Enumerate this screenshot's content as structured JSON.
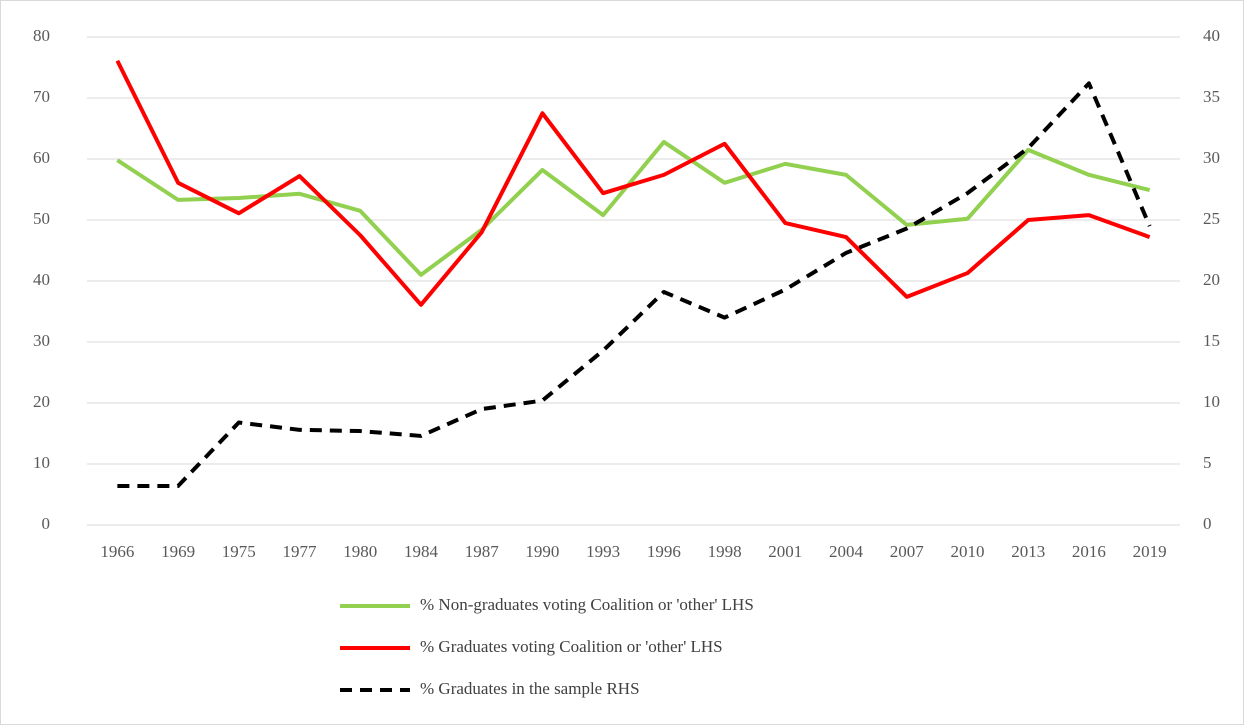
{
  "chart_data": {
    "type": "line",
    "categories": [
      "1966",
      "1969",
      "1975",
      "1977",
      "1980",
      "1984",
      "1987",
      "1990",
      "1993",
      "1996",
      "1998",
      "2001",
      "2004",
      "2007",
      "2010",
      "2013",
      "2016",
      "2019"
    ],
    "series": [
      {
        "name": "% Non-graduates voting Coalition or 'other' LHS",
        "color": "#92d050",
        "dash": false,
        "values": [
          59.8,
          53.3,
          53.6,
          54.3,
          51.5,
          41.0,
          48.4,
          58.2,
          50.8,
          62.8,
          56.1,
          59.2,
          57.4,
          49.2,
          50.2,
          61.5,
          57.4,
          54.9
        ]
      },
      {
        "name": "% Graduates voting Coalition or 'other' LHS",
        "color": "#ff0000",
        "dash": false,
        "values": [
          76.1,
          56.1,
          51.1,
          57.2,
          47.5,
          36.1,
          48.0,
          67.5,
          54.4,
          57.4,
          62.5,
          49.5,
          47.2,
          37.4,
          41.3,
          50.0,
          50.8,
          47.2
        ]
      },
      {
        "name": "% Graduates in the sample RHS",
        "color": "#000000",
        "dash": true,
        "axis": "y2",
        "values": [
          3.2,
          3.2,
          8.4,
          7.8,
          7.7,
          7.3,
          9.5,
          10.2,
          14.3,
          19.1,
          17.0,
          19.3,
          22.3,
          24.3,
          27.2,
          30.9,
          36.2,
          24.5
        ]
      }
    ],
    "ylim": [
      0,
      80
    ],
    "yticks": [
      0,
      10,
      20,
      30,
      40,
      50,
      60,
      70,
      80
    ],
    "y2lim": [
      0,
      40
    ],
    "y2ticks": [
      0,
      5,
      10,
      15,
      20,
      25,
      30,
      35,
      40
    ],
    "grid": true,
    "legend": "bottom"
  }
}
